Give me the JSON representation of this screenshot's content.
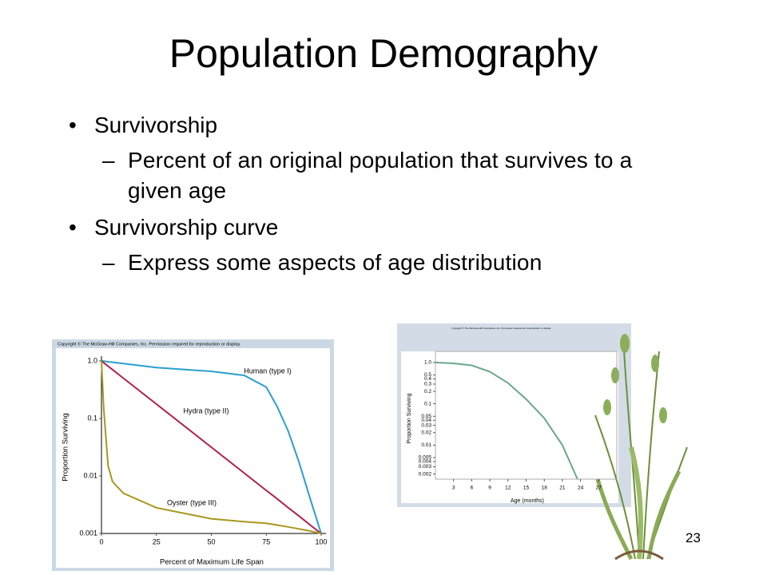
{
  "slide": {
    "title": "Population Demography",
    "bullets": [
      {
        "text": "Survivorship",
        "level": 1
      },
      {
        "text": "Percent of an original population that survives to a given age",
        "level": 2
      },
      {
        "text": "Survivorship curve",
        "level": 1
      },
      {
        "text": "Express some aspects of age distribution",
        "level": 2
      }
    ],
    "page_number": "23"
  },
  "chart_data": [
    {
      "type": "line",
      "note": "Copyright © The McGraw-Hill Companies, Inc. Permission required for reproduction or display.",
      "xlabel": "Percent of Maximum Life Span",
      "ylabel": "Proportion Surviving",
      "log_y": true,
      "x": [
        0,
        1,
        3,
        5,
        10,
        25,
        50,
        65,
        75,
        80,
        85,
        90,
        95,
        100
      ],
      "series": [
        {
          "name": "Human (type I)",
          "color": "#2a9fd0",
          "values": [
            1,
            0.99,
            0.97,
            0.95,
            0.9,
            0.77,
            0.66,
            0.56,
            0.35,
            0.16,
            0.06,
            0.017,
            0.004,
            0.001
          ]
        },
        {
          "name": "Hydra (type II)",
          "color": "#b0204a",
          "values": [
            1,
            0.933,
            0.813,
            0.708,
            0.501,
            0.178,
            0.0316,
            0.0112,
            0.0056,
            0.004,
            0.0028,
            0.002,
            0.0014,
            0.001
          ]
        },
        {
          "name": "Oyster (type III)",
          "color": "#a8981e",
          "values": [
            1,
            0.15,
            0.015,
            0.008,
            0.005,
            0.0028,
            0.0018,
            0.0016,
            0.0015,
            0.0014,
            0.0013,
            0.0012,
            0.0011,
            0.001
          ]
        }
      ],
      "xlim": [
        0,
        100
      ],
      "xticks": [
        0,
        25,
        50,
        75,
        100
      ],
      "ylim": [
        0.001,
        1
      ],
      "yticks": [
        {
          "value": 1,
          "label": "1.0"
        },
        0.1,
        0.01,
        0.001
      ]
    },
    {
      "type": "line",
      "note": "Copyright © The McGraw-Hill Companies, Inc. Permission required for reproduction or display.",
      "xlabel": "Age (months)",
      "ylabel": "Proportion Surviving",
      "log_y": true,
      "x": [
        0,
        3,
        6,
        9,
        12,
        15,
        18,
        21,
        23.5
      ],
      "series": [
        {
          "color": "#6aa88a",
          "values": [
            1,
            0.95,
            0.85,
            0.6,
            0.32,
            0.13,
            0.045,
            0.01,
            0.0015
          ]
        }
      ],
      "xlim": [
        0,
        30
      ],
      "xticks": [
        3,
        6,
        9,
        12,
        15,
        18,
        21,
        24,
        27
      ],
      "ylim": [
        0.0015,
        1.3
      ],
      "yticks": [
        {
          "value": 1,
          "label": "1.0"
        },
        0.5,
        0.4,
        0.3,
        0.2,
        0.1,
        0.05,
        0.04,
        0.03,
        0.02,
        0.01,
        0.005,
        0.004,
        0.003,
        0.002
      ]
    }
  ]
}
